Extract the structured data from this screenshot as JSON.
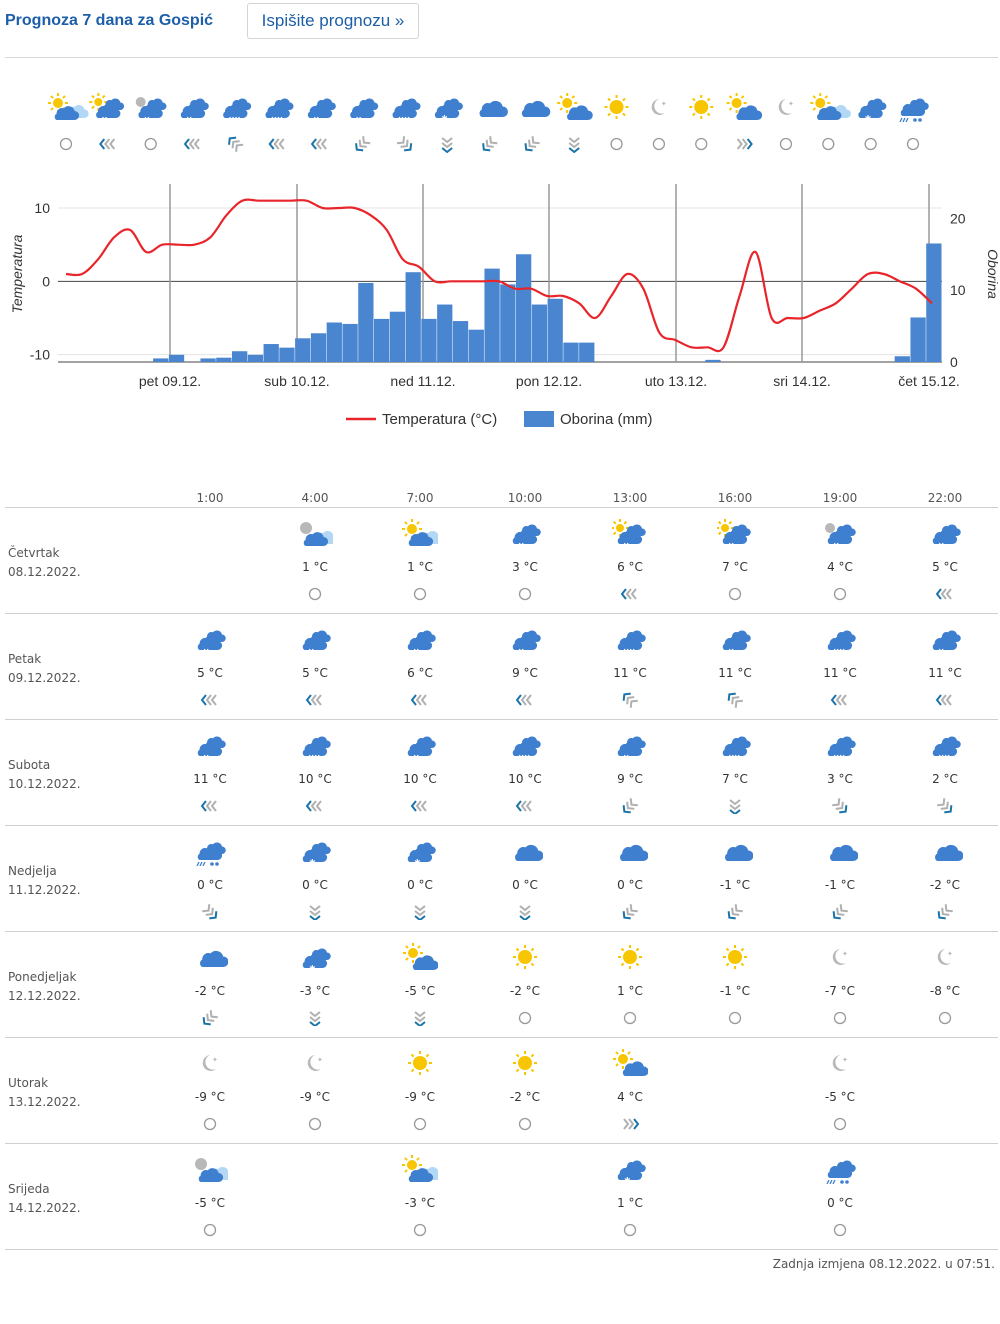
{
  "header": {
    "title": "Prognoza 7 dana za Gospić",
    "print_button": "Ispišite prognozu »"
  },
  "strip": [
    {
      "icon": "sun-cloud-light",
      "wind": "calm"
    },
    {
      "icon": "sun-rain",
      "wind": "left"
    },
    {
      "icon": "moon-rain",
      "wind": "calm"
    },
    {
      "icon": "rain",
      "wind": "left"
    },
    {
      "icon": "heavy-rain",
      "wind": "up-left"
    },
    {
      "icon": "heavy-rain",
      "wind": "left"
    },
    {
      "icon": "rain",
      "wind": "left"
    },
    {
      "icon": "rain",
      "wind": "down-left"
    },
    {
      "icon": "heavy-rain",
      "wind": "down-right"
    },
    {
      "icon": "snow",
      "wind": "down"
    },
    {
      "icon": "cloud",
      "wind": "down-left"
    },
    {
      "icon": "cloud",
      "wind": "down-left"
    },
    {
      "icon": "sun-cloud",
      "wind": "down"
    },
    {
      "icon": "sun",
      "wind": "calm"
    },
    {
      "icon": "moon",
      "wind": "calm"
    },
    {
      "icon": "sun",
      "wind": "calm"
    },
    {
      "icon": "sun-cloud",
      "wind": "right"
    },
    {
      "icon": "moon",
      "wind": "calm"
    },
    {
      "icon": "sun-cloud-light",
      "wind": "calm"
    },
    {
      "icon": "snow",
      "wind": "calm"
    },
    {
      "icon": "sleet",
      "wind": "calm"
    }
  ],
  "chart_data": {
    "type": "line",
    "title": "",
    "ylabel": "Temperatura",
    "y2label": "Oborina",
    "ylim": [
      -11,
      13
    ],
    "y2lim": [
      0,
      24.5
    ],
    "yticks": [
      10,
      0,
      -10
    ],
    "y2ticks": [
      20,
      10,
      0
    ],
    "day_labels": [
      "pet 09.12.",
      "sub 10.12.",
      "ned 11.12.",
      "pon 12.12.",
      "uto 13.12.",
      "sri 14.12.",
      "čet 15.12."
    ],
    "legend": [
      "Temperatura (°C)",
      "Oborina (mm)"
    ],
    "series": [
      {
        "name": "Temperatura (°C)",
        "unit": "°C",
        "values": [
          1,
          1,
          3,
          6,
          7,
          4,
          5,
          5,
          5,
          6,
          9,
          11,
          11,
          11,
          11,
          11,
          10,
          10,
          10,
          9,
          7,
          3,
          2,
          0,
          0,
          0,
          0,
          0,
          -1,
          -1,
          -2,
          -2,
          -3,
          -5,
          -2,
          1,
          -1,
          -7,
          -8,
          -9,
          -9,
          -9,
          -2,
          4,
          -5,
          -5,
          -5,
          -4,
          -3,
          -1,
          1,
          1,
          0,
          -1,
          -3
        ]
      },
      {
        "name": "Oborina (mm)",
        "unit": "mm",
        "values": [
          0,
          0,
          0,
          0,
          0.5,
          1,
          0,
          0.5,
          0.6,
          1.5,
          1,
          2.5,
          2,
          3.3,
          4,
          5.5,
          5.3,
          11,
          6,
          7,
          12.5,
          6,
          8,
          5.7,
          4.5,
          13,
          10.8,
          15,
          8,
          8.8,
          2.7,
          2.7,
          0,
          0,
          0,
          0,
          0,
          0,
          0,
          0.3,
          0,
          0,
          0,
          0,
          0,
          0,
          0,
          0,
          0,
          0,
          0,
          0.8,
          6.2,
          16.5
        ]
      }
    ]
  },
  "table": {
    "times": [
      "1:00",
      "4:00",
      "7:00",
      "10:00",
      "13:00",
      "16:00",
      "19:00",
      "22:00"
    ],
    "days": [
      {
        "name": "Četvrtak",
        "date": "08.12.2022.",
        "cells": [
          null,
          {
            "icon": "moon-cloud-light",
            "temp": "1 °C",
            "wind": "calm"
          },
          {
            "icon": "sun-cloud-light",
            "temp": "1 °C",
            "wind": "calm"
          },
          {
            "icon": "rain",
            "temp": "3 °C",
            "wind": "calm"
          },
          {
            "icon": "sun-rain",
            "temp": "6 °C",
            "wind": "left"
          },
          {
            "icon": "sun-rain",
            "temp": "7 °C",
            "wind": "calm"
          },
          {
            "icon": "moon-rain",
            "temp": "4 °C",
            "wind": "calm"
          },
          {
            "icon": "rain",
            "temp": "5 °C",
            "wind": "left"
          }
        ]
      },
      {
        "name": "Petak",
        "date": "09.12.2022.",
        "cells": [
          {
            "icon": "rain",
            "temp": "5 °C",
            "wind": "left"
          },
          {
            "icon": "rain",
            "temp": "5 °C",
            "wind": "left"
          },
          {
            "icon": "rain",
            "temp": "6 °C",
            "wind": "left"
          },
          {
            "icon": "rain",
            "temp": "9 °C",
            "wind": "left"
          },
          {
            "icon": "heavy-rain",
            "temp": "11 °C",
            "wind": "up-left"
          },
          {
            "icon": "rain",
            "temp": "11 °C",
            "wind": "up-left"
          },
          {
            "icon": "heavy-rain",
            "temp": "11 °C",
            "wind": "left"
          },
          {
            "icon": "rain",
            "temp": "11 °C",
            "wind": "left"
          }
        ]
      },
      {
        "name": "Subota",
        "date": "10.12.2022.",
        "cells": [
          {
            "icon": "rain",
            "temp": "11 °C",
            "wind": "left"
          },
          {
            "icon": "heavy-rain",
            "temp": "10 °C",
            "wind": "left"
          },
          {
            "icon": "rain",
            "temp": "10 °C",
            "wind": "left"
          },
          {
            "icon": "heavy-rain",
            "temp": "10 °C",
            "wind": "left"
          },
          {
            "icon": "rain",
            "temp": "9 °C",
            "wind": "down-left"
          },
          {
            "icon": "heavy-rain",
            "temp": "7 °C",
            "wind": "down"
          },
          {
            "icon": "heavy-rain",
            "temp": "3 °C",
            "wind": "down-right"
          },
          {
            "icon": "heavy-rain",
            "temp": "2 °C",
            "wind": "down-right"
          }
        ]
      },
      {
        "name": "Nedjelja",
        "date": "11.12.2022.",
        "cells": [
          {
            "icon": "sleet",
            "temp": "0 °C",
            "wind": "down-right"
          },
          {
            "icon": "snow",
            "temp": "0 °C",
            "wind": "down"
          },
          {
            "icon": "snow",
            "temp": "0 °C",
            "wind": "down"
          },
          {
            "icon": "cloud",
            "temp": "0 °C",
            "wind": "down"
          },
          {
            "icon": "cloud",
            "temp": "0 °C",
            "wind": "down-left"
          },
          {
            "icon": "cloud",
            "temp": "-1 °C",
            "wind": "down-left"
          },
          {
            "icon": "cloud",
            "temp": "-1 °C",
            "wind": "down-left"
          },
          {
            "icon": "cloud",
            "temp": "-2 °C",
            "wind": "down-left"
          }
        ]
      },
      {
        "name": "Ponedjeljak",
        "date": "12.12.2022.",
        "cells": [
          {
            "icon": "cloud",
            "temp": "-2 °C",
            "wind": "down-left"
          },
          {
            "icon": "snow",
            "temp": "-3 °C",
            "wind": "down"
          },
          {
            "icon": "sun-cloud",
            "temp": "-5 °C",
            "wind": "down"
          },
          {
            "icon": "sun",
            "temp": "-2 °C",
            "wind": "calm"
          },
          {
            "icon": "sun",
            "temp": "1 °C",
            "wind": "calm"
          },
          {
            "icon": "sun",
            "temp": "-1 °C",
            "wind": "calm"
          },
          {
            "icon": "moon",
            "temp": "-7 °C",
            "wind": "calm"
          },
          {
            "icon": "moon",
            "temp": "-8 °C",
            "wind": "calm"
          }
        ]
      },
      {
        "name": "Utorak",
        "date": "13.12.2022.",
        "cells": [
          {
            "icon": "moon",
            "temp": "-9 °C",
            "wind": "calm"
          },
          {
            "icon": "moon",
            "temp": "-9 °C",
            "wind": "calm"
          },
          {
            "icon": "sun",
            "temp": "-9 °C",
            "wind": "calm"
          },
          {
            "icon": "sun",
            "temp": "-2 °C",
            "wind": "calm"
          },
          {
            "icon": "sun-cloud",
            "temp": "4 °C",
            "wind": "right"
          },
          null,
          {
            "icon": "moon",
            "temp": "-5 °C",
            "wind": "calm"
          },
          null
        ]
      },
      {
        "name": "Srijeda",
        "date": "14.12.2022.",
        "cells": [
          {
            "icon": "moon-cloud-light",
            "temp": "-5 °C",
            "wind": "calm"
          },
          null,
          {
            "icon": "sun-cloud-light",
            "temp": "-3 °C",
            "wind": "calm"
          },
          null,
          {
            "icon": "snow",
            "temp": "1 °C",
            "wind": "calm"
          },
          null,
          {
            "icon": "sleet",
            "temp": "0 °C",
            "wind": "calm"
          },
          null
        ]
      }
    ]
  },
  "footer": "Zadnja izmjena 08.12.2022. u 07:51.",
  "colors": {
    "title": "#1d5ea8",
    "temp_line": "#e8252b",
    "precip": "#4a86d0",
    "cloud": "#3f7fcf",
    "sun": "#f7c600",
    "wind": "#1a74a8"
  }
}
